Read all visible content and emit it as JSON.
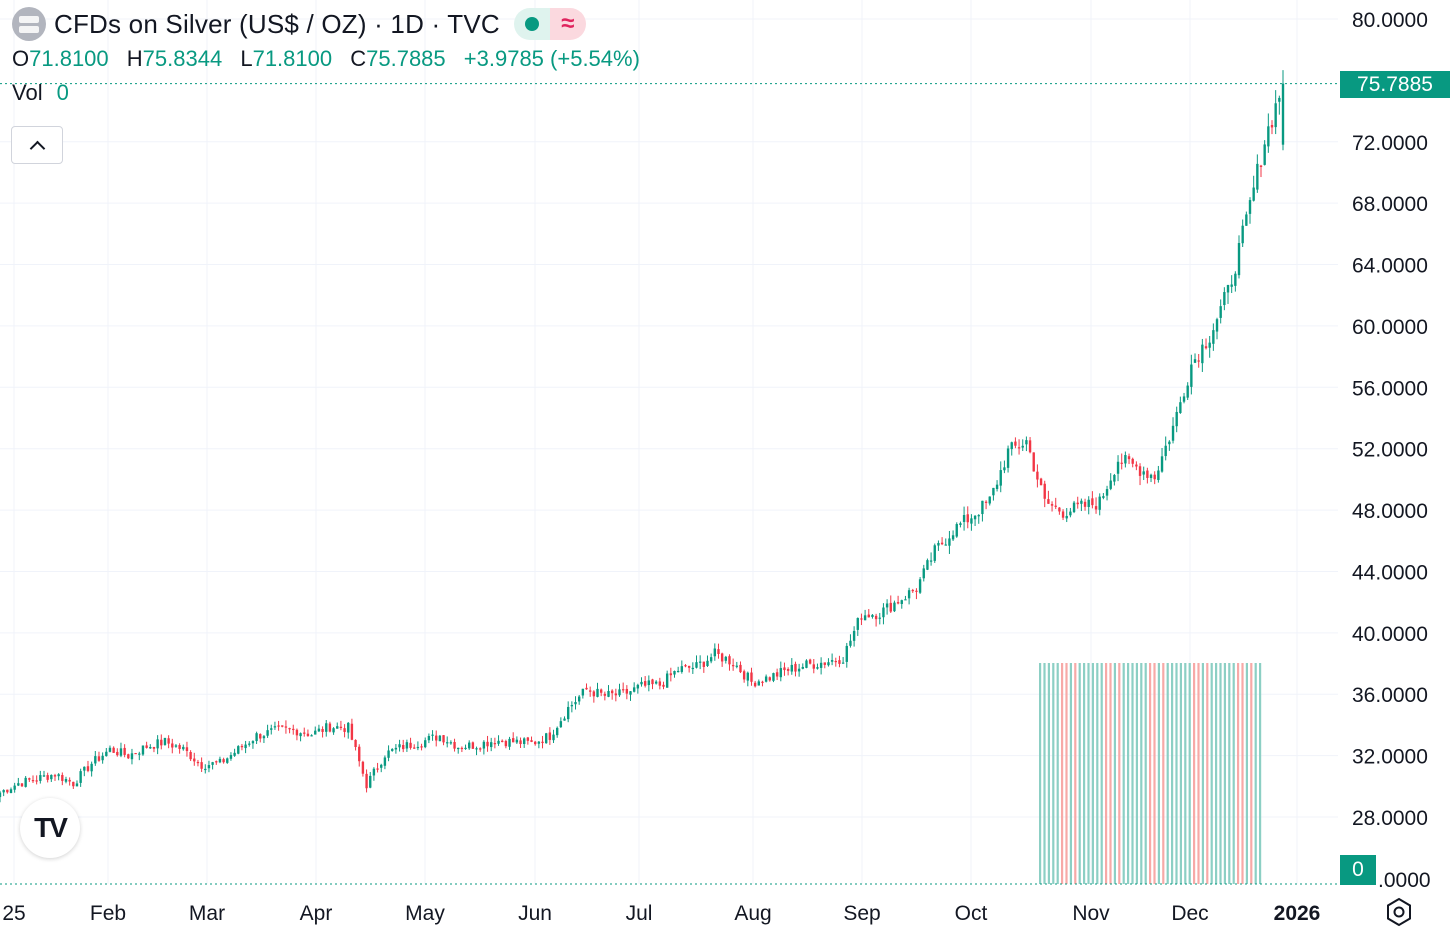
{
  "header": {
    "title": "CFDs on Silver (US$ / OZ) · 1D · TVC",
    "ohlc": {
      "o_label": "O",
      "o_value": "71.8100",
      "h_label": "H",
      "h_value": "75.8344",
      "l_label": "L",
      "l_value": "71.8100",
      "c_label": "C",
      "c_value": "75.7885",
      "change": "+3.9785 (+5.54%)"
    },
    "vol_label": "Vol",
    "vol_value": "0"
  },
  "price_tag": "75.7885",
  "vol_tag": "0",
  "colors": {
    "up": "#089981",
    "down": "#f23645",
    "grid": "#f0f3fa",
    "text": "#131722"
  },
  "chart_data": {
    "type": "candlestick",
    "series_name": "CFDs on Silver (US$ / OZ)",
    "interval": "1D",
    "x_ticks": [
      "25",
      "Feb",
      "Mar",
      "Apr",
      "May",
      "Jun",
      "Jul",
      "Aug",
      "Sep",
      "Oct",
      "Nov",
      "Dec",
      "2026"
    ],
    "y_ticks": [
      "80.0000",
      "72.0000",
      "68.0000",
      "64.0000",
      "60.0000",
      "56.0000",
      "52.0000",
      "48.0000",
      "44.0000",
      "40.0000",
      "36.0000",
      "32.0000",
      "28.0000"
    ],
    "y_partial_bottom_label": ".0000",
    "ylim": [
      23,
      81
    ],
    "last_price": 75.7885,
    "weekly_closes": [
      29.6,
      30.2,
      30.5,
      30.8,
      30.2,
      31.5,
      32.4,
      32.0,
      32.6,
      32.9,
      32.4,
      31.4,
      31.5,
      32.4,
      33.3,
      33.6,
      33.7,
      33.4,
      33.9,
      33.8,
      30.1,
      32.1,
      32.6,
      32.9,
      33.3,
      32.6,
      32.7,
      33.0,
      32.9,
      32.8,
      33.3,
      35.1,
      36.3,
      35.9,
      36.0,
      36.5,
      36.6,
      37.6,
      37.8,
      38.6,
      38.1,
      36.8,
      37.1,
      37.6,
      37.9,
      38.1,
      38.4,
      41.2,
      41.3,
      42.1,
      42.9,
      45.3,
      46.7,
      47.6,
      48.6,
      51.8,
      52.5,
      48.5,
      47.9,
      48.2,
      48.5,
      51.3,
      50.8,
      50.2,
      53.4,
      57.5,
      59.4,
      62.2,
      66.8,
      72.1,
      75.79
    ]
  }
}
